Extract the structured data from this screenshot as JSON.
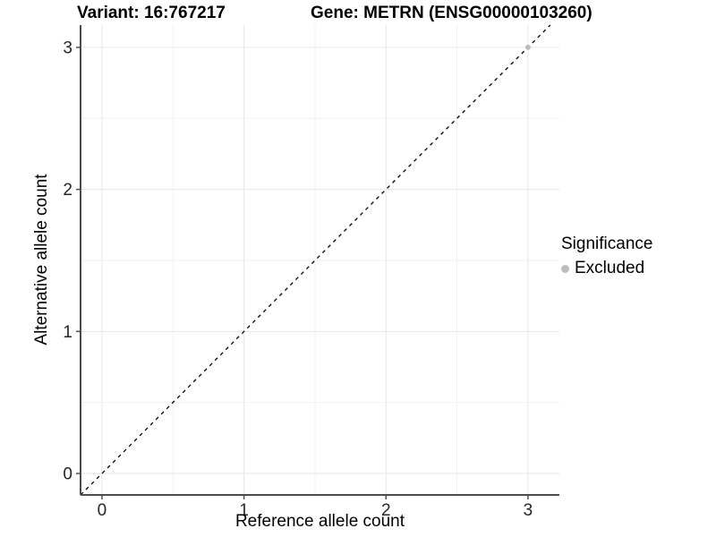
{
  "page": {
    "background": "#ffffff"
  },
  "chart_data": {
    "type": "scatter",
    "titles": {
      "left": "Variant: 16:767217",
      "right": "Gene: METRN (ENSG00000103260)"
    },
    "xlabel": "Reference allele count",
    "ylabel": "Alternative allele count",
    "x_ticks": {
      "values": [
        0,
        1,
        2,
        3
      ],
      "labels": [
        "0",
        "1",
        "2",
        "3"
      ]
    },
    "y_ticks": {
      "values": [
        0,
        1,
        2,
        3
      ],
      "labels": [
        "0",
        "1",
        "2",
        "3"
      ]
    },
    "x_minor": [
      0.5,
      1.5,
      2.5
    ],
    "y_minor": [
      0.5,
      1.5,
      2.5
    ],
    "xlim": [
      -0.151,
      3.221
    ],
    "ylim": [
      -0.151,
      3.157
    ],
    "grid": {
      "major_color": "#e6e6e6",
      "minor_color": "#f2f2f2"
    },
    "axis": {
      "line_color": "#4d4d4d",
      "tick_color": "#4d4d4d",
      "text_color": "#262626"
    },
    "identity_line": {
      "type": "dashed",
      "slope": 1,
      "intercept": 0,
      "color": "#000000"
    },
    "series": [
      {
        "name": "Excluded",
        "color": "#bdbdbd",
        "points": [
          {
            "x": 3,
            "y": 3
          }
        ]
      }
    ],
    "legend": {
      "title": "Significance",
      "position": "right",
      "items": [
        {
          "label": "Excluded",
          "color": "#bdbdbd",
          "marker": "circle"
        }
      ]
    }
  }
}
